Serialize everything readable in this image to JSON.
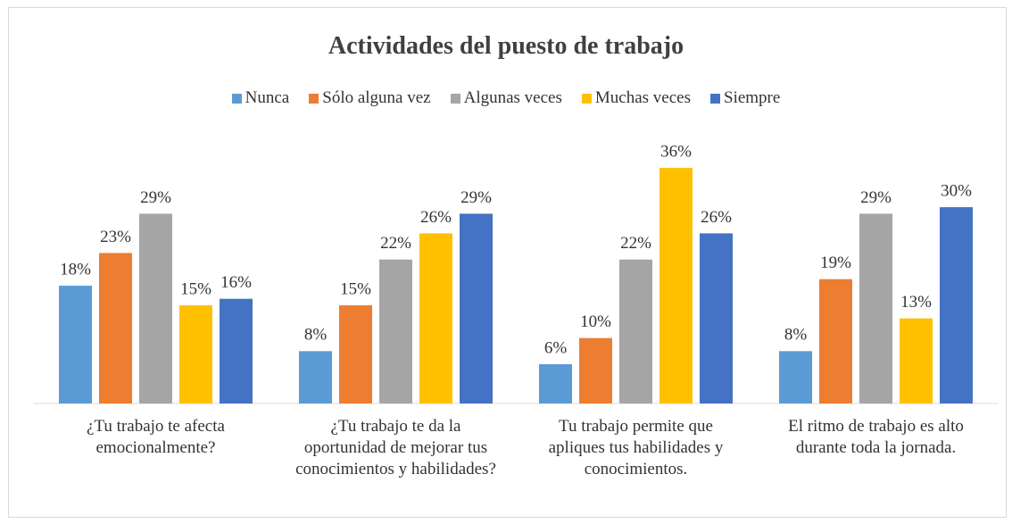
{
  "chart_data": {
    "type": "bar",
    "title": "Actividades del puesto de trabajo",
    "categories": [
      "¿Tu trabajo te afecta emocionalmente?",
      "¿Tu trabajo te da la oportunidad de mejorar tus conocimientos y habilidades?",
      "Tu trabajo permite que apliques tus habilidades y conocimientos.",
      "El ritmo de trabajo es alto durante toda la jornada."
    ],
    "series": [
      {
        "name": "Nunca",
        "color": "#5b9bd5",
        "values": [
          18,
          8,
          6,
          8
        ],
        "value_labels": [
          "18%",
          "8%",
          "6%",
          "8%"
        ]
      },
      {
        "name": "Sólo alguna vez",
        "color": "#ed7d31",
        "values": [
          23,
          15,
          10,
          19
        ],
        "value_labels": [
          "23%",
          "15%",
          "10%",
          "19%"
        ]
      },
      {
        "name": "Algunas veces",
        "color": "#a5a5a5",
        "values": [
          29,
          22,
          22,
          29
        ],
        "value_labels": [
          "29%",
          "22%",
          "22%",
          "29%"
        ]
      },
      {
        "name": "Muchas veces",
        "color": "#ffc000",
        "values": [
          15,
          26,
          36,
          13
        ],
        "value_labels": [
          "15%",
          "26%",
          "36%",
          "13%"
        ]
      },
      {
        "name": "Siempre",
        "color": "#4472c4",
        "values": [
          16,
          29,
          26,
          30
        ],
        "value_labels": [
          "16%",
          "29%",
          "26%",
          "30%"
        ]
      }
    ],
    "legend": "top"
  }
}
